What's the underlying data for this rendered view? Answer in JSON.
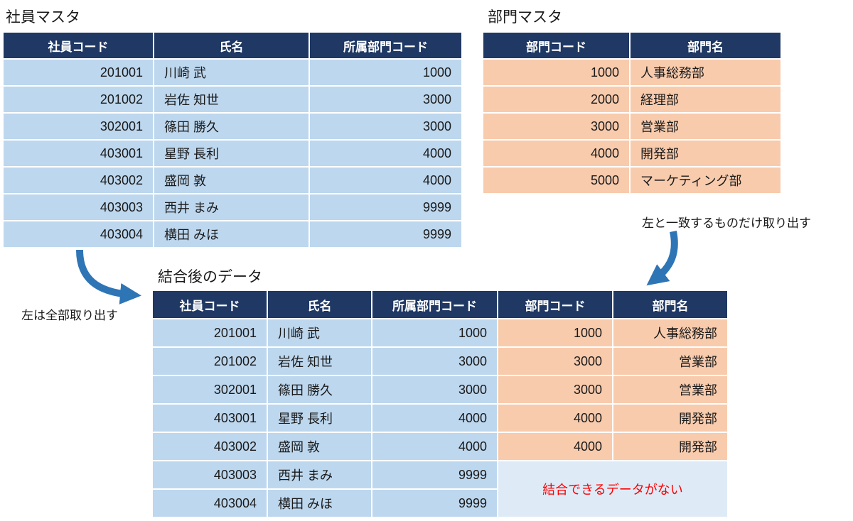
{
  "employee_table": {
    "title": "社員マスタ",
    "headers": [
      "社員コード",
      "氏名",
      "所属部門コード"
    ],
    "rows": [
      [
        "201001",
        "川崎 武",
        "1000"
      ],
      [
        "201002",
        "岩佐 知世",
        "3000"
      ],
      [
        "302001",
        "篠田 勝久",
        "3000"
      ],
      [
        "403001",
        "星野 長利",
        "4000"
      ],
      [
        "403002",
        "盛岡 敦",
        "4000"
      ],
      [
        "403003",
        "西井 まみ",
        "9999"
      ],
      [
        "403004",
        "横田 みほ",
        "9999"
      ]
    ]
  },
  "department_table": {
    "title": "部門マスタ",
    "headers": [
      "部門コード",
      "部門名"
    ],
    "rows": [
      [
        "1000",
        "人事総務部"
      ],
      [
        "2000",
        "経理部"
      ],
      [
        "3000",
        "営業部"
      ],
      [
        "4000",
        "開発部"
      ],
      [
        "5000",
        "マーケティング部"
      ]
    ]
  },
  "joined_table": {
    "title": "結合後のデータ",
    "headers": [
      "社員コード",
      "氏名",
      "所属部門コード",
      "部門コード",
      "部門名"
    ],
    "rows": [
      [
        "201001",
        "川崎 武",
        "1000",
        "1000",
        "人事総務部"
      ],
      [
        "201002",
        "岩佐 知世",
        "3000",
        "3000",
        "営業部"
      ],
      [
        "302001",
        "篠田 勝久",
        "3000",
        "3000",
        "営業部"
      ],
      [
        "403001",
        "星野 長利",
        "4000",
        "4000",
        "開発部"
      ],
      [
        "403002",
        "盛岡 敦",
        "4000",
        "4000",
        "開発部"
      ],
      [
        "403003",
        "西井 まみ",
        "9999",
        null,
        null
      ],
      [
        "403004",
        "横田 みほ",
        "9999",
        null,
        null
      ]
    ]
  },
  "annotations": {
    "match_note": "左と一致するものだけ取り出す",
    "left_all_note": "左は全部取り出す",
    "no_join_note": "結合できるデータがない"
  },
  "colors": {
    "header_bg": "#1F3864",
    "employee_row_bg": "#BDD7EE",
    "department_row_bg": "#F8CBAD",
    "empty_cell_bg": "#DEEBF7",
    "arrow": "#2E75B6",
    "no_join_text": "#FF0000"
  }
}
